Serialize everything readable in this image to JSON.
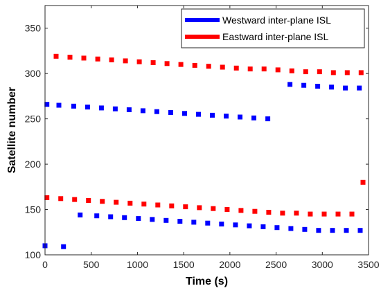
{
  "chart_data": {
    "type": "scatter",
    "xlabel": "Time (s)",
    "ylabel": "Satellite number",
    "xlim": [
      0,
      3500
    ],
    "ylim": [
      100,
      375
    ],
    "xticks": [
      0,
      500,
      1000,
      1500,
      2000,
      2500,
      3000,
      3500
    ],
    "yticks": [
      100,
      150,
      200,
      250,
      300,
      350
    ],
    "grid": false,
    "legend_position": "top-right",
    "series": [
      {
        "name": "Westward inter-plane ISL",
        "color": "#0000ff",
        "points": [
          [
            20,
            266
          ],
          [
            150,
            265
          ],
          [
            310,
            264
          ],
          [
            460,
            263
          ],
          [
            610,
            262
          ],
          [
            760,
            261
          ],
          [
            910,
            260
          ],
          [
            1060,
            259
          ],
          [
            1210,
            258
          ],
          [
            1360,
            257
          ],
          [
            1510,
            256
          ],
          [
            1660,
            255
          ],
          [
            1810,
            254
          ],
          [
            1960,
            253
          ],
          [
            2110,
            252
          ],
          [
            2260,
            251
          ],
          [
            2410,
            250
          ],
          [
            2650,
            288
          ],
          [
            2800,
            287
          ],
          [
            2950,
            286
          ],
          [
            3100,
            285
          ],
          [
            3250,
            284
          ],
          [
            3400,
            284
          ],
          [
            0,
            110
          ],
          [
            200,
            109
          ],
          [
            380,
            144
          ],
          [
            560,
            143
          ],
          [
            710,
            142
          ],
          [
            860,
            141
          ],
          [
            1010,
            140
          ],
          [
            1160,
            139
          ],
          [
            1310,
            138
          ],
          [
            1460,
            137
          ],
          [
            1610,
            136
          ],
          [
            1760,
            135
          ],
          [
            1910,
            134
          ],
          [
            2060,
            133
          ],
          [
            2210,
            132
          ],
          [
            2360,
            131
          ],
          [
            2510,
            130
          ],
          [
            2660,
            129
          ],
          [
            2810,
            128
          ],
          [
            2960,
            127
          ],
          [
            3110,
            127
          ],
          [
            3260,
            127
          ],
          [
            3410,
            127
          ]
        ]
      },
      {
        "name": "Eastward inter-plane ISL",
        "color": "#ff0000",
        "points": [
          [
            120,
            319
          ],
          [
            270,
            318
          ],
          [
            420,
            317
          ],
          [
            570,
            316
          ],
          [
            720,
            315
          ],
          [
            870,
            314
          ],
          [
            1020,
            313
          ],
          [
            1170,
            312
          ],
          [
            1320,
            311
          ],
          [
            1470,
            310
          ],
          [
            1620,
            309
          ],
          [
            1770,
            308
          ],
          [
            1920,
            307
          ],
          [
            2070,
            306
          ],
          [
            2220,
            305
          ],
          [
            2370,
            305
          ],
          [
            2520,
            304
          ],
          [
            2670,
            303
          ],
          [
            2820,
            302
          ],
          [
            2970,
            302
          ],
          [
            3120,
            301
          ],
          [
            3270,
            301
          ],
          [
            3420,
            301
          ],
          [
            20,
            163
          ],
          [
            170,
            162
          ],
          [
            320,
            161
          ],
          [
            470,
            160
          ],
          [
            620,
            159
          ],
          [
            770,
            158
          ],
          [
            920,
            157
          ],
          [
            1070,
            156
          ],
          [
            1220,
            155
          ],
          [
            1370,
            154
          ],
          [
            1520,
            153
          ],
          [
            1670,
            152
          ],
          [
            1820,
            151
          ],
          [
            1970,
            150
          ],
          [
            2120,
            149
          ],
          [
            2270,
            148
          ],
          [
            2420,
            147
          ],
          [
            2570,
            146
          ],
          [
            2720,
            146
          ],
          [
            2870,
            145
          ],
          [
            3020,
            145
          ],
          [
            3170,
            145
          ],
          [
            3320,
            145
          ],
          [
            3440,
            180
          ]
        ]
      }
    ]
  }
}
